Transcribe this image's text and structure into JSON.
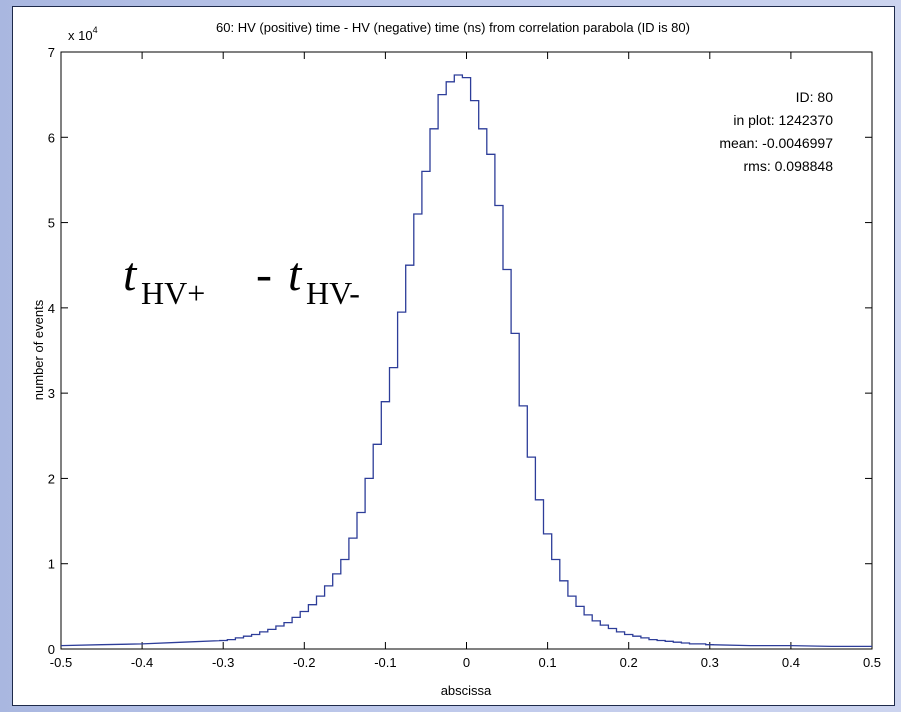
{
  "chart_data": {
    "type": "histogram",
    "title": "60:  HV (positive) time - HV (negative) time (ns) from correlation parabola  (ID is  80)",
    "xlabel": "abscissa",
    "ylabel": "number of events",
    "y_multiplier": "x 10",
    "y_multiplier_exp": "4",
    "xlim": [
      -0.5,
      0.5
    ],
    "ylim": [
      0,
      7
    ],
    "x_ticks": [
      "-0.5",
      "-0.4",
      "-0.3",
      "-0.2",
      "-0.1",
      "0",
      "0.1",
      "0.2",
      "0.3",
      "0.4",
      "0.5"
    ],
    "y_ticks": [
      "0",
      "1",
      "2",
      "3",
      "4",
      "5",
      "6",
      "7"
    ],
    "bin_width": 0.01,
    "x": [
      -0.3,
      -0.29,
      -0.28,
      -0.27,
      -0.26,
      -0.25,
      -0.24,
      -0.23,
      -0.22,
      -0.21,
      -0.2,
      -0.19,
      -0.18,
      -0.17,
      -0.16,
      -0.15,
      -0.14,
      -0.13,
      -0.12,
      -0.11,
      -0.1,
      -0.09,
      -0.08,
      -0.07,
      -0.06,
      -0.05,
      -0.04,
      -0.03,
      -0.02,
      -0.01,
      0,
      0.01,
      0.02,
      0.03,
      0.04,
      0.05,
      0.06,
      0.07,
      0.08,
      0.09,
      0.1,
      0.11,
      0.12,
      0.13,
      0.14,
      0.15,
      0.16,
      0.17,
      0.18,
      0.19,
      0.2,
      0.21,
      0.22,
      0.23,
      0.24,
      0.25,
      0.26,
      0.27,
      0.28,
      0.29,
      0.3
    ],
    "values": [
      0.1,
      0.11,
      0.13,
      0.15,
      0.17,
      0.2,
      0.23,
      0.27,
      0.31,
      0.37,
      0.44,
      0.52,
      0.62,
      0.74,
      0.88,
      1.05,
      1.3,
      1.6,
      2.0,
      2.4,
      2.9,
      3.3,
      3.95,
      4.5,
      5.1,
      5.6,
      6.1,
      6.5,
      6.65,
      6.73,
      6.7,
      6.43,
      6.1,
      5.8,
      5.2,
      4.45,
      3.7,
      2.85,
      2.25,
      1.75,
      1.35,
      1.05,
      0.8,
      0.62,
      0.5,
      0.4,
      0.33,
      0.28,
      0.24,
      0.2,
      0.17,
      0.15,
      0.13,
      0.11,
      0.1,
      0.09,
      0.08,
      0.07,
      0.06,
      0.06,
      0.05
    ],
    "tail_left": [
      [
        -0.5,
        0.04
      ],
      [
        -0.45,
        0.05
      ],
      [
        -0.4,
        0.06
      ],
      [
        -0.35,
        0.08
      ],
      [
        -0.3,
        0.1
      ]
    ],
    "tail_right": [
      [
        0.3,
        0.05
      ],
      [
        0.35,
        0.04
      ],
      [
        0.4,
        0.04
      ],
      [
        0.45,
        0.03
      ],
      [
        0.5,
        0.03
      ]
    ],
    "grid": false,
    "line_color": "#2d3d99",
    "stats": {
      "id": "ID: 80",
      "in_plot": "in plot:  1242370",
      "mean": "mean: -0.0046997",
      "rms": "rms:  0.098848"
    },
    "annotation": {
      "t": "t",
      "sub_plus": "HV+",
      "dash": "-",
      "sub_minus": "HV-"
    }
  }
}
